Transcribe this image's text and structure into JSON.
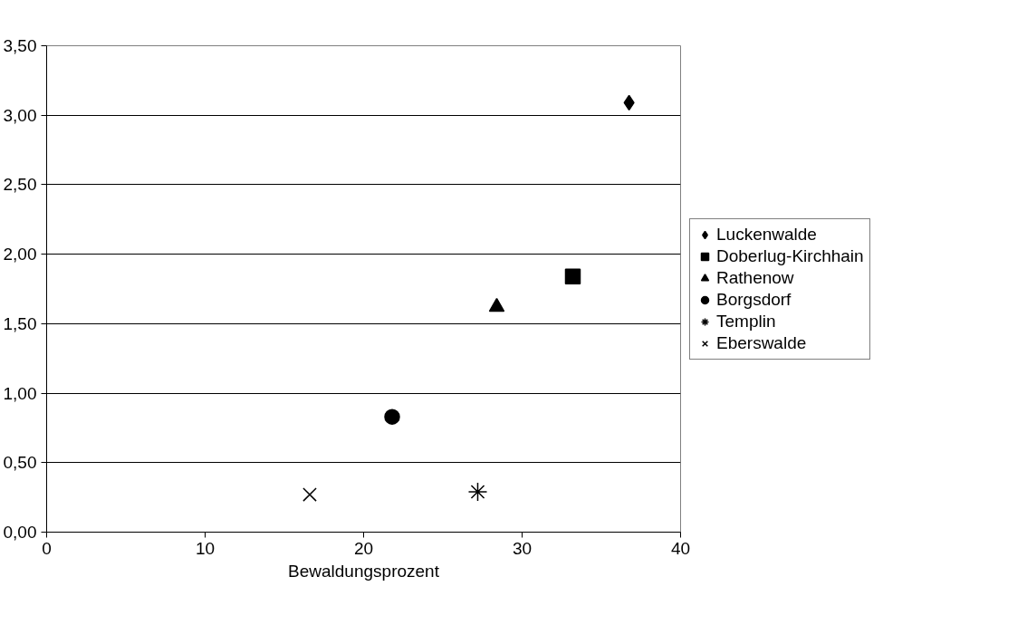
{
  "chart_data": {
    "type": "scatter",
    "xlabel": "Bewaldungsprozent",
    "xlim": [
      0,
      40
    ],
    "xticks": [
      0,
      10,
      20,
      30,
      40
    ],
    "ylim": [
      0,
      3.5
    ],
    "yticks": [
      {
        "value": 0,
        "label": "0,00"
      },
      {
        "value": 0.5,
        "label": "0,50"
      },
      {
        "value": 1,
        "label": "1,00"
      },
      {
        "value": 1.5,
        "label": "1,50"
      },
      {
        "value": 2,
        "label": "2,00"
      },
      {
        "value": 2.5,
        "label": "2,50"
      },
      {
        "value": 3,
        "label": "3,00"
      },
      {
        "value": 3.5,
        "label": "3,50"
      }
    ],
    "grid": "y",
    "legend": "right",
    "series": [
      {
        "name": "Luckenwalde",
        "color": "#000000",
        "marker": "diamond",
        "x": [
          36.75
        ],
        "values": [
          3.09
        ]
      },
      {
        "name": "Doberlug-Kirchhain",
        "color": "#000000",
        "marker": "square",
        "x": [
          33.2
        ],
        "values": [
          1.84
        ]
      },
      {
        "name": "Rathenow",
        "color": "#000000",
        "marker": "triangle",
        "x": [
          28.4
        ],
        "values": [
          1.62
        ]
      },
      {
        "name": "Borgsdorf",
        "color": "#000000",
        "marker": "circle",
        "x": [
          21.8
        ],
        "values": [
          0.83
        ]
      },
      {
        "name": "Templin",
        "color": "#000000",
        "x": [
          27.2
        ],
        "values": [
          0.29
        ]
      },
      {
        "name": "Eberswalde",
        "color": "#000000",
        "marker": "cross",
        "x": [
          16.6
        ],
        "values": [
          0.27
        ]
      }
    ]
  }
}
